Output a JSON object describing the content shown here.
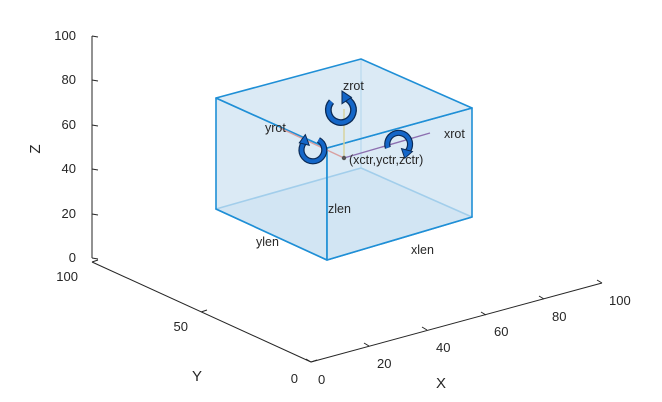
{
  "axes": {
    "z": {
      "label": "Z",
      "ticks": [
        "100",
        "80",
        "60",
        "40",
        "20",
        "0"
      ]
    },
    "y": {
      "label": "Y",
      "ticks": [
        "100",
        "50",
        "0"
      ]
    },
    "x": {
      "label": "X",
      "ticks": [
        "0",
        "20",
        "40",
        "60",
        "80",
        "100"
      ]
    }
  },
  "box": {
    "fill_color": "#cfe3f1",
    "edge_color": "#1f8fd6",
    "labels": {
      "center": "(xctr,yctr,zctr)",
      "xrot": "xrot",
      "yrot": "yrot",
      "zrot": "zrot",
      "xlen": "xlen",
      "ylen": "ylen",
      "zlen": "zlen"
    }
  },
  "colors": {
    "x_axis_line": "#8c6fb0",
    "y_axis_line": "#d9a0a0",
    "z_axis_line": "#d8d29a",
    "rotation_arrow": "#1466c8"
  }
}
